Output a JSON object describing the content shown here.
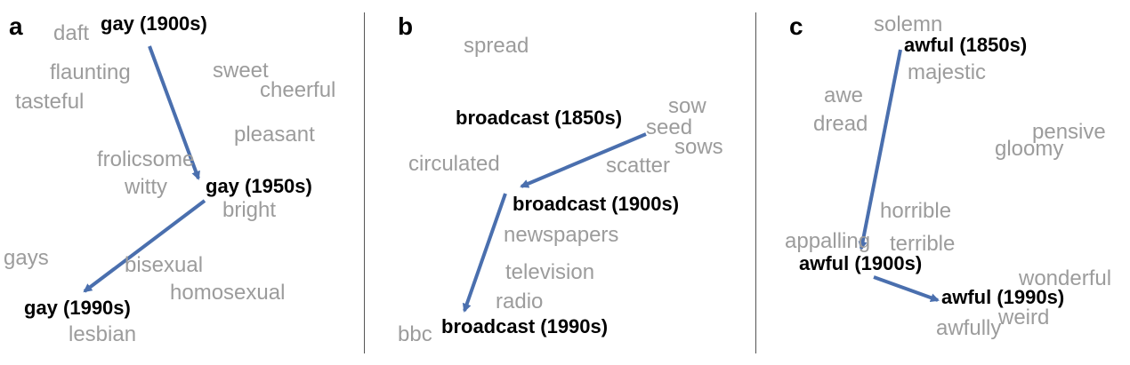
{
  "colors": {
    "arrow": "#4a6fae",
    "context_word": "#9c9c9c",
    "key_word": "#000000"
  },
  "panels": [
    {
      "label": "a",
      "key_words": [
        "gay (1900s)",
        "gay (1950s)",
        "gay (1990s)"
      ],
      "context_words": [
        "daft",
        "flaunting",
        "tasteful",
        "sweet",
        "cheerful",
        "pleasant",
        "frolicsome",
        "witty",
        "bright",
        "gays",
        "bisexual",
        "homosexual",
        "lesbian"
      ]
    },
    {
      "label": "b",
      "key_words": [
        "broadcast (1850s)",
        "broadcast (1900s)",
        "broadcast (1990s)"
      ],
      "context_words": [
        "spread",
        "sow",
        "seed",
        "sows",
        "circulated",
        "scatter",
        "newspapers",
        "television",
        "radio",
        "bbc"
      ]
    },
    {
      "label": "c",
      "key_words": [
        "awful (1850s)",
        "awful (1900s)",
        "awful (1990s)"
      ],
      "context_words": [
        "solemn",
        "majestic",
        "awe",
        "dread",
        "pensive",
        "gloomy",
        "horrible",
        "appalling",
        "terrible",
        "wonderful",
        "weird",
        "awfully"
      ]
    }
  ]
}
